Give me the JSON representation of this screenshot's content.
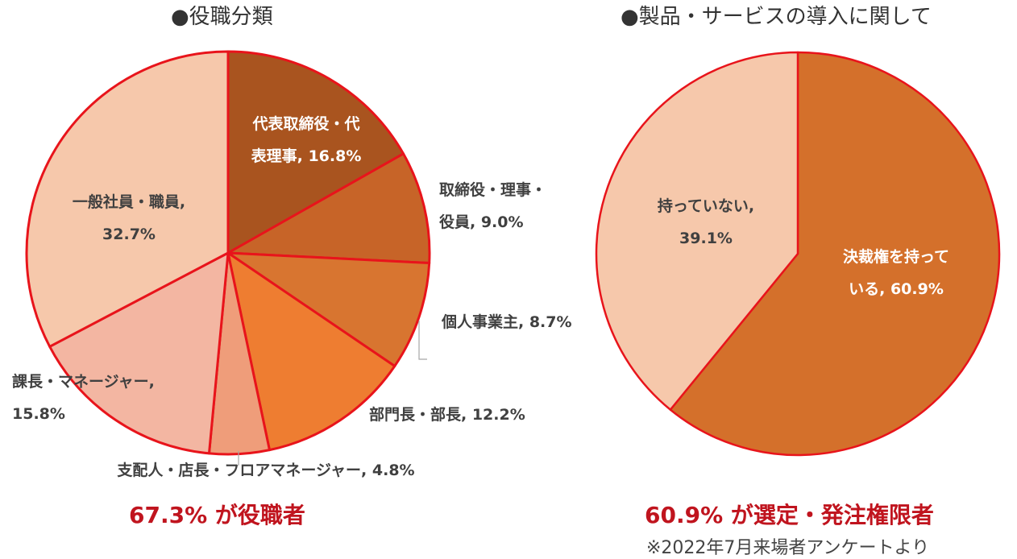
{
  "chart_data": [
    {
      "type": "pie",
      "title": "●役職分類",
      "slices": [
        {
          "label": [
            "代表取締役・代",
            "表理事, 16.8%"
          ],
          "value": 16.8,
          "color": "#a9541f",
          "label_color": "#ffffff"
        },
        {
          "label": [
            "取締役・理事・",
            "役員, 9.0%"
          ],
          "value": 9.0,
          "color": "#c76428",
          "label_color": "#404040"
        },
        {
          "label": [
            "個人事業主, 8.7%"
          ],
          "value": 8.7,
          "color": "#d87530",
          "label_color": "#404040"
        },
        {
          "label": [
            "部門長・部長, 12.2%"
          ],
          "value": 12.2,
          "color": "#ee7d31",
          "label_color": "#404040"
        },
        {
          "label": [
            "支配人・店長・フロアマネージャー, 4.8%"
          ],
          "value": 4.8,
          "color": "#ef9d7a",
          "label_color": "#404040"
        },
        {
          "label": [
            "課長・マネージャー,",
            "15.8%"
          ],
          "value": 15.8,
          "color": "#f3b6a2",
          "label_color": "#404040"
        },
        {
          "label": [
            "一般社員・職員,",
            "32.7%"
          ],
          "value": 32.7,
          "color": "#f6c8ab",
          "label_color": "#404040"
        }
      ],
      "summary": "67.3% が役職者"
    },
    {
      "type": "pie",
      "title": "●製品・サービスの導入に関して",
      "slices": [
        {
          "label": [
            "決裁権を持って",
            "いる, 60.9%"
          ],
          "value": 60.9,
          "color": "#d4702b",
          "label_color": "#ffffff"
        },
        {
          "label": [
            "持っていない,",
            "39.1%"
          ],
          "value": 39.1,
          "color": "#f6c8ab",
          "label_color": "#404040"
        }
      ],
      "summary": "60.9% が選定・発注権限者"
    }
  ],
  "note": "※2022年7月来場者アンケートより"
}
